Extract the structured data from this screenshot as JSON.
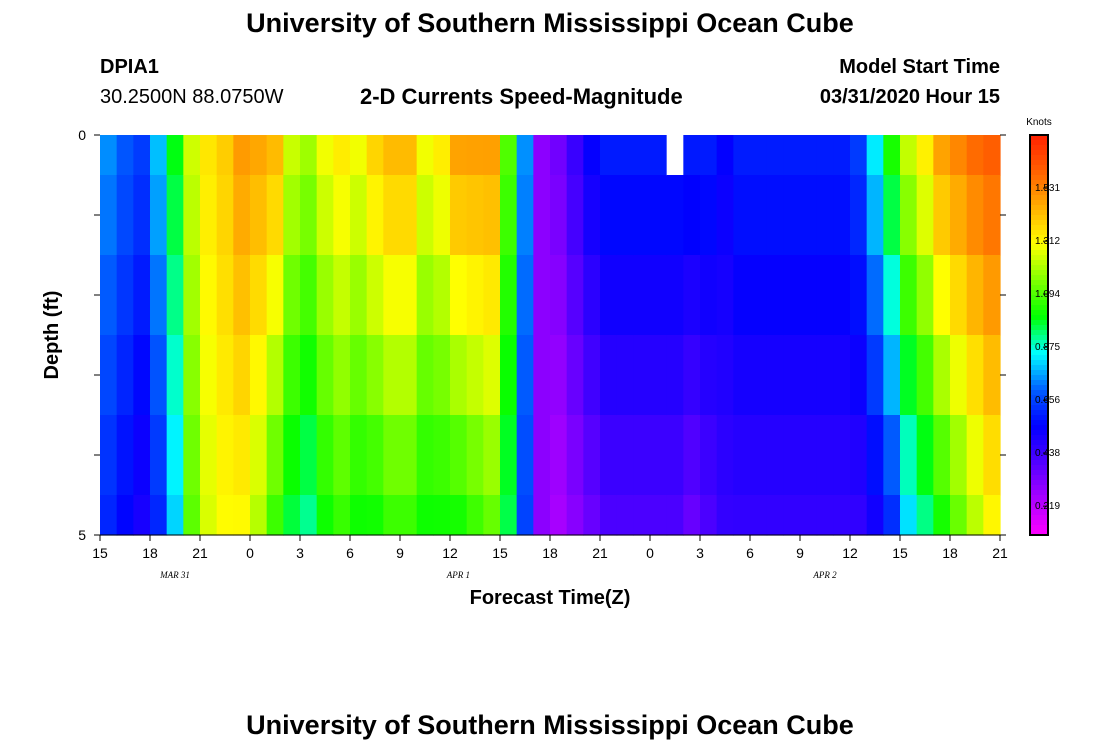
{
  "header": {
    "title_top": "University of Southern Mississippi Ocean Cube",
    "title_bottom": "University of Southern Mississippi Ocean Cube",
    "station_id": "DPIA1",
    "station_coords": "30.2500N 88.0750W",
    "plot_title": "2-D Currents Speed-Magnitude",
    "model_start_label": "Model Start Time",
    "model_start_value": "03/31/2020 Hour 15"
  },
  "chart_data": {
    "type": "heatmap",
    "title": "2-D Currents Speed-Magnitude",
    "xlabel": "Forecast Time(Z)",
    "ylabel": "Depth (ft)",
    "colorbar_label": "Knots",
    "y_tick_labels": [
      "0",
      "5"
    ],
    "x_tick_labels": [
      "15",
      "18",
      "21",
      "0",
      "3",
      "6",
      "9",
      "12",
      "15",
      "18",
      "21",
      "0",
      "3",
      "6",
      "9",
      "12",
      "15",
      "18",
      "21"
    ],
    "date_labels": [
      {
        "text": "MAR  31",
        "hour_offset": 4.5
      },
      {
        "text": "APR  1",
        "hour_offset": 21.5
      },
      {
        "text": "APR  2",
        "hour_offset": 43.5
      }
    ],
    "hours_span": 54,
    "depth_range": [
      0,
      5
    ],
    "depth_layers": 5,
    "columns": 54,
    "colorbar_ticks": [
      0.219,
      0.438,
      0.656,
      0.875,
      1.094,
      1.312,
      1.531
    ],
    "colorbar_tick_labels": [
      "0.219",
      "0.438",
      "0.656",
      "0.875",
      "1.094",
      "1.312",
      "1.531"
    ],
    "color_range": [
      0.1,
      1.75
    ],
    "colormap": [
      "#ff00ff",
      "#aa00ff",
      "#5000ff",
      "#0000ff",
      "#0060ff",
      "#00ffff",
      "#00ff00",
      "#80ff00",
      "#ffff00",
      "#ffb000",
      "#ff6000",
      "#ff2000"
    ],
    "surface_layer_rows": 0.5,
    "missing_cell": {
      "column": 34,
      "layer": "surface"
    },
    "speed_profile_top": [
      0.75,
      0.69,
      0.65,
      0.8,
      1.0,
      1.25,
      1.35,
      1.4,
      1.5,
      1.48,
      1.45,
      1.25,
      1.2,
      1.3,
      1.35,
      1.3,
      1.4,
      1.45,
      1.45,
      1.3,
      1.35,
      1.5,
      1.5,
      1.5,
      1.1,
      0.75,
      0.3,
      0.35,
      0.45,
      0.55,
      0.6,
      0.6,
      0.6,
      0.6,
      0.6,
      0.6,
      0.6,
      0.55,
      0.6,
      0.6,
      0.6,
      0.6,
      0.6,
      0.6,
      0.6,
      0.65,
      0.85,
      1.05,
      1.25,
      1.35,
      1.5,
      1.55,
      1.6,
      1.62
    ],
    "speed_profile_deep": [
      0.6,
      0.55,
      0.5,
      0.6,
      0.8,
      1.1,
      1.25,
      1.3,
      1.3,
      1.2,
      1.05,
      0.95,
      0.9,
      1.0,
      1.05,
      1.0,
      1.0,
      1.05,
      1.05,
      1.0,
      1.0,
      1.0,
      1.05,
      1.1,
      0.95,
      0.65,
      0.3,
      0.25,
      0.3,
      0.35,
      0.4,
      0.4,
      0.4,
      0.4,
      0.4,
      0.35,
      0.4,
      0.45,
      0.45,
      0.45,
      0.45,
      0.45,
      0.45,
      0.45,
      0.45,
      0.45,
      0.5,
      0.6,
      0.8,
      0.9,
      1.0,
      1.1,
      1.2,
      1.3
    ],
    "colorbar_label_pos": "right"
  }
}
